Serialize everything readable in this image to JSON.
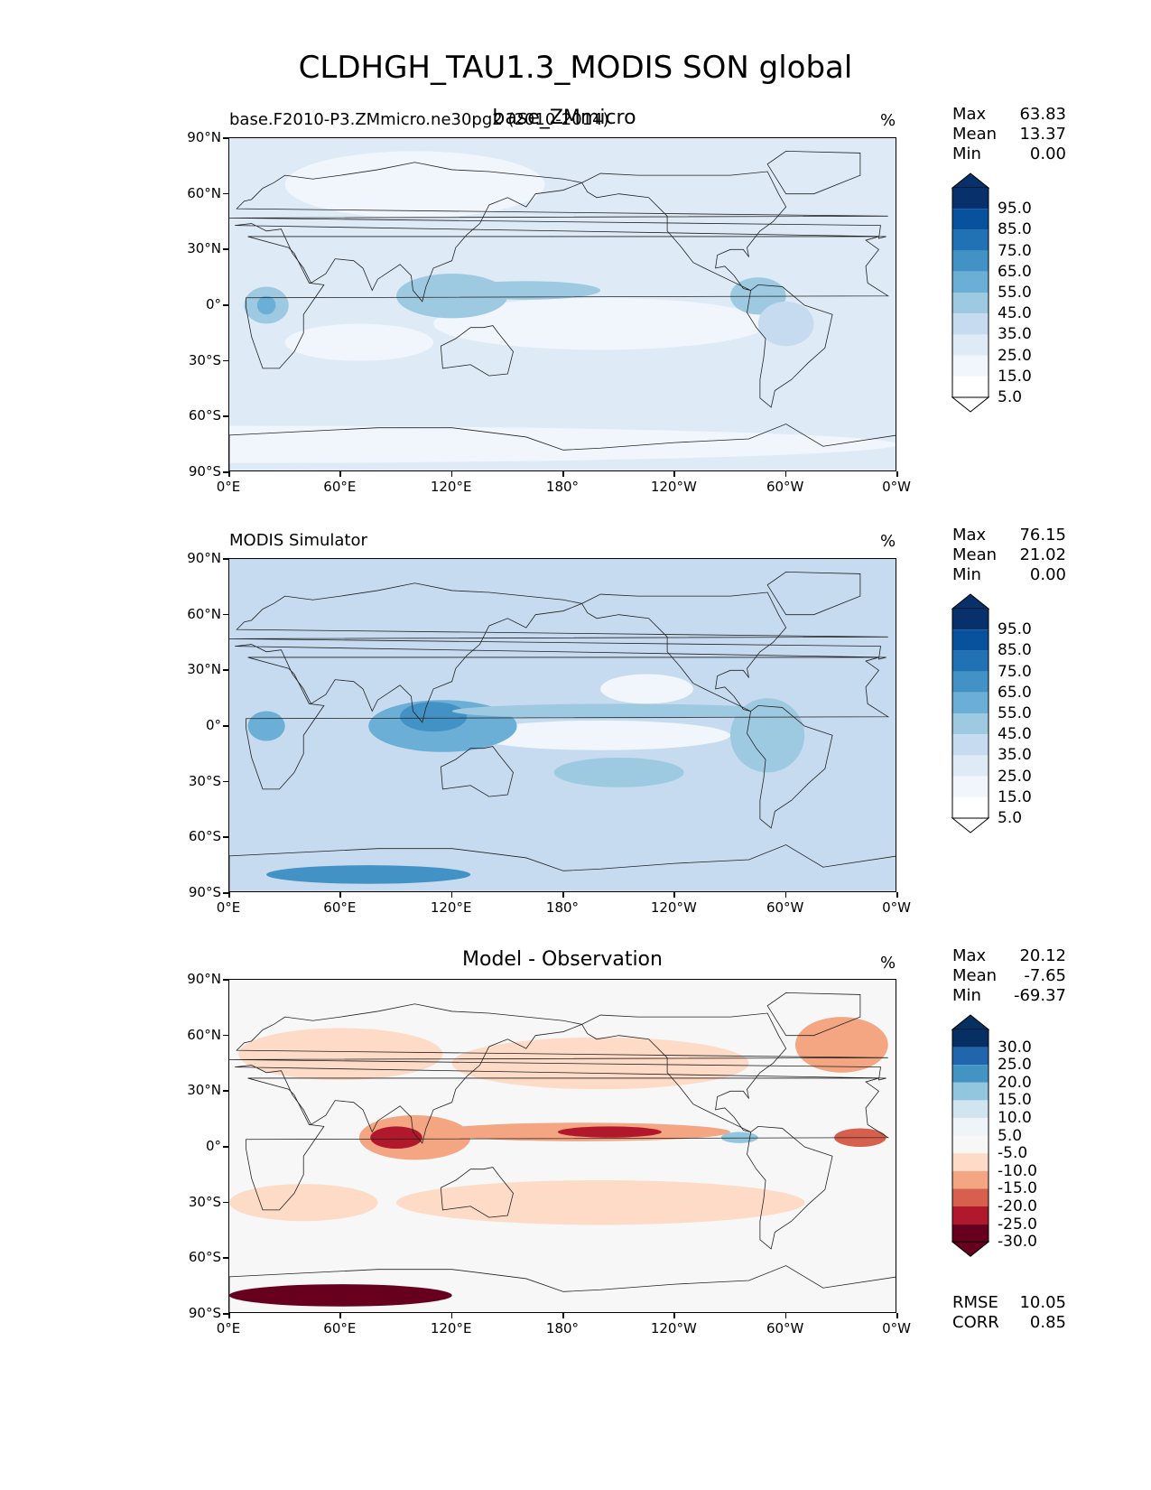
{
  "title": "CLDHGH_TAU1.3_MODIS SON global",
  "panels": [
    {
      "left_title": "base.F2010-P3.ZMmicro.ne30pg2 (2010-2014)",
      "center_title": "base_ZMmicro",
      "unit": "%",
      "stats": {
        "max_label": "Max",
        "max": "63.83",
        "mean_label": "Mean",
        "mean": "13.37",
        "min_label": "Min",
        "min": "0.00"
      },
      "colorbar": {
        "labels": [
          "95.0",
          "85.0",
          "75.0",
          "65.0",
          "55.0",
          "45.0",
          "35.0",
          "25.0",
          "15.0",
          "5.0"
        ],
        "colors": [
          "#08306b",
          "#08519c",
          "#2171b5",
          "#4292c6",
          "#6baed6",
          "#9ecae1",
          "#c6dbef",
          "#deebf7",
          "#f0f6fc",
          "#ffffff"
        ]
      }
    },
    {
      "left_title": "MODIS Simulator",
      "center_title": "",
      "unit": "%",
      "stats": {
        "max_label": "Max",
        "max": "76.15",
        "mean_label": "Mean",
        "mean": "21.02",
        "min_label": "Min",
        "min": "0.00"
      },
      "colorbar": {
        "labels": [
          "95.0",
          "85.0",
          "75.0",
          "65.0",
          "55.0",
          "45.0",
          "35.0",
          "25.0",
          "15.0",
          "5.0"
        ],
        "colors": [
          "#08306b",
          "#08519c",
          "#2171b5",
          "#4292c6",
          "#6baed6",
          "#9ecae1",
          "#c6dbef",
          "#deebf7",
          "#f0f6fc",
          "#ffffff"
        ]
      }
    },
    {
      "left_title": "",
      "center_title": "Model - Observation",
      "unit": "%",
      "stats": {
        "max_label": "Max",
        "max": "20.12",
        "mean_label": "Mean",
        "mean": "-7.65",
        "min_label": "Min",
        "min": "-69.37"
      },
      "extra_stats": {
        "rmse_label": "RMSE",
        "rmse": "10.05",
        "corr_label": "CORR",
        "corr": "0.85"
      },
      "colorbar": {
        "labels": [
          "30.0",
          "25.0",
          "20.0",
          "15.0",
          "10.0",
          "5.0",
          "-5.0",
          "-10.0",
          "-15.0",
          "-20.0",
          "-25.0",
          "-30.0"
        ],
        "colors": [
          "#053061",
          "#2166ac",
          "#4393c3",
          "#92c5de",
          "#d1e5f0",
          "#eef4f8",
          "#f7f7f7",
          "#fddbc7",
          "#f4a582",
          "#d6604d",
          "#b2182b",
          "#67001f"
        ]
      }
    }
  ],
  "axes": {
    "y_ticks": [
      "90°N",
      "60°N",
      "30°N",
      "0°",
      "30°S",
      "60°S",
      "90°S"
    ],
    "x_ticks": [
      "0°E",
      "60°E",
      "120°E",
      "180°",
      "120°W",
      "60°W",
      "0°W"
    ]
  },
  "chart_data": [
    {
      "type": "heatmap",
      "title": "base_ZMmicro",
      "subtitle": "base.F2010-P3.ZMmicro.ne30pg2 (2010-2014)",
      "variable": "CLDHGH_TAU1.3_MODIS",
      "season": "SON",
      "unit": "%",
      "xlim": [
        0,
        360
      ],
      "ylim": [
        -90,
        90
      ],
      "x_tick_labels": [
        "0°E",
        "60°E",
        "120°E",
        "180°",
        "120°W",
        "60°W",
        "0°W"
      ],
      "y_tick_labels": [
        "90°N",
        "60°N",
        "30°N",
        "0°",
        "30°S",
        "60°S",
        "90°S"
      ],
      "contour_levels": [
        5,
        15,
        25,
        35,
        45,
        55,
        65,
        75,
        85,
        95
      ],
      "colormap": "Blues",
      "max": 63.83,
      "mean": 13.37,
      "min": 0.0
    },
    {
      "type": "heatmap",
      "title": "MODIS Simulator",
      "unit": "%",
      "xlim": [
        0,
        360
      ],
      "ylim": [
        -90,
        90
      ],
      "x_tick_labels": [
        "0°E",
        "60°E",
        "120°E",
        "180°",
        "120°W",
        "60°W",
        "0°W"
      ],
      "y_tick_labels": [
        "90°N",
        "60°N",
        "30°N",
        "0°",
        "30°S",
        "60°S",
        "90°S"
      ],
      "contour_levels": [
        5,
        15,
        25,
        35,
        45,
        55,
        65,
        75,
        85,
        95
      ],
      "colormap": "Blues",
      "max": 76.15,
      "mean": 21.02,
      "min": 0.0
    },
    {
      "type": "heatmap",
      "title": "Model - Observation",
      "unit": "%",
      "xlim": [
        0,
        360
      ],
      "ylim": [
        -90,
        90
      ],
      "x_tick_labels": [
        "0°E",
        "60°E",
        "120°E",
        "180°",
        "120°W",
        "60°W",
        "0°W"
      ],
      "y_tick_labels": [
        "90°N",
        "60°N",
        "30°N",
        "0°",
        "30°S",
        "60°S",
        "90°S"
      ],
      "contour_levels": [
        -30,
        -25,
        -20,
        -15,
        -10,
        -5,
        5,
        10,
        15,
        20,
        25,
        30
      ],
      "colormap": "RdBu_r",
      "max": 20.12,
      "mean": -7.65,
      "min": -69.37,
      "rmse": 10.05,
      "corr": 0.85
    }
  ]
}
